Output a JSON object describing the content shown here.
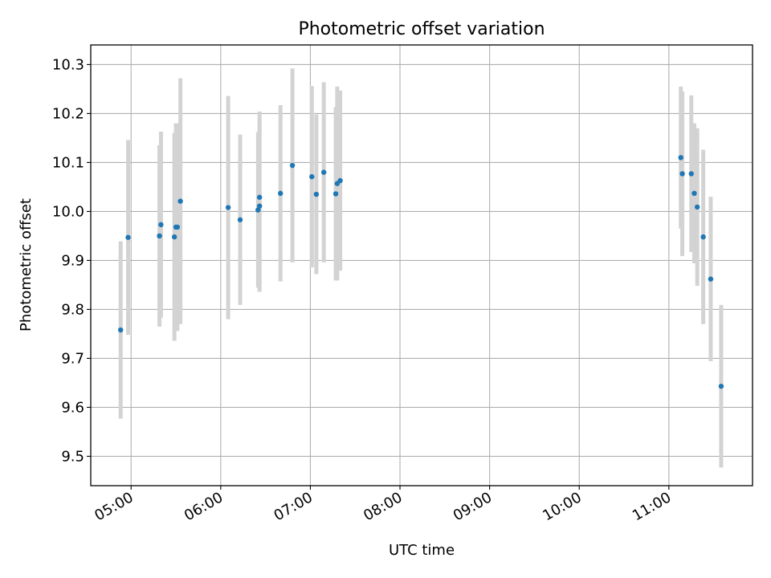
{
  "chart_data": {
    "type": "scatter",
    "title": "Photometric offset variation",
    "xlabel": "UTC time",
    "ylabel": "Photometric offset",
    "x_unit": "UTC time (HH:MM)",
    "xlim": [
      "04:33",
      "11:56"
    ],
    "ylim": [
      9.44,
      10.34
    ],
    "x_ticks": [
      "05:00",
      "06:00",
      "07:00",
      "08:00",
      "09:00",
      "10:00",
      "11:00"
    ],
    "y_ticks": [
      "9.5",
      "9.6",
      "9.7",
      "9.8",
      "9.9",
      "10.0",
      "10.1",
      "10.2",
      "10.3"
    ],
    "grid": true,
    "legend": "none",
    "point_color": "#1f77b4",
    "errorbar_color": "#d3d3d3",
    "points": [
      {
        "x": "04:53",
        "y": 9.758,
        "yerr": 0.181
      },
      {
        "x": "04:58",
        "y": 9.947,
        "yerr": 0.199
      },
      {
        "x": "05:19",
        "y": 9.95,
        "yerr": 0.185
      },
      {
        "x": "05:19",
        "y": 9.95,
        "yerr": 0.185
      },
      {
        "x": "05:20",
        "y": 9.973,
        "yerr": 0.19
      },
      {
        "x": "05:29",
        "y": 9.948,
        "yerr": 0.212
      },
      {
        "x": "05:30",
        "y": 9.968,
        "yerr": 0.212
      },
      {
        "x": "05:31",
        "y": 9.968,
        "yerr": 0.212
      },
      {
        "x": "05:33",
        "y": 10.021,
        "yerr": 0.251
      },
      {
        "x": "06:05",
        "y": 10.008,
        "yerr": 0.228
      },
      {
        "x": "06:13",
        "y": 9.983,
        "yerr": 0.174
      },
      {
        "x": "06:25",
        "y": 10.003,
        "yerr": 0.159
      },
      {
        "x": "06:26",
        "y": 10.029,
        "yerr": 0.175
      },
      {
        "x": "06:26",
        "y": 10.011,
        "yerr": 0.175
      },
      {
        "x": "06:40",
        "y": 10.037,
        "yerr": 0.18
      },
      {
        "x": "06:48",
        "y": 10.094,
        "yerr": 0.198
      },
      {
        "x": "07:01",
        "y": 10.071,
        "yerr": 0.185
      },
      {
        "x": "07:04",
        "y": 10.035,
        "yerr": 0.163
      },
      {
        "x": "07:09",
        "y": 10.08,
        "yerr": 0.184
      },
      {
        "x": "07:17",
        "y": 10.036,
        "yerr": 0.177
      },
      {
        "x": "07:18",
        "y": 10.057,
        "yerr": 0.198
      },
      {
        "x": "07:20",
        "y": 10.063,
        "yerr": 0.184
      },
      {
        "x": "11:08",
        "y": 10.11,
        "yerr": 0.145
      },
      {
        "x": "11:09",
        "y": 10.077,
        "yerr": 0.168
      },
      {
        "x": "11:15",
        "y": 10.077,
        "yerr": 0.16
      },
      {
        "x": "11:17",
        "y": 10.037,
        "yerr": 0.143
      },
      {
        "x": "11:19",
        "y": 10.009,
        "yerr": 0.161
      },
      {
        "x": "11:23",
        "y": 9.948,
        "yerr": 0.178
      },
      {
        "x": "11:28",
        "y": 9.862,
        "yerr": 0.168
      },
      {
        "x": "11:35",
        "y": 9.643,
        "yerr": 0.166
      }
    ]
  }
}
